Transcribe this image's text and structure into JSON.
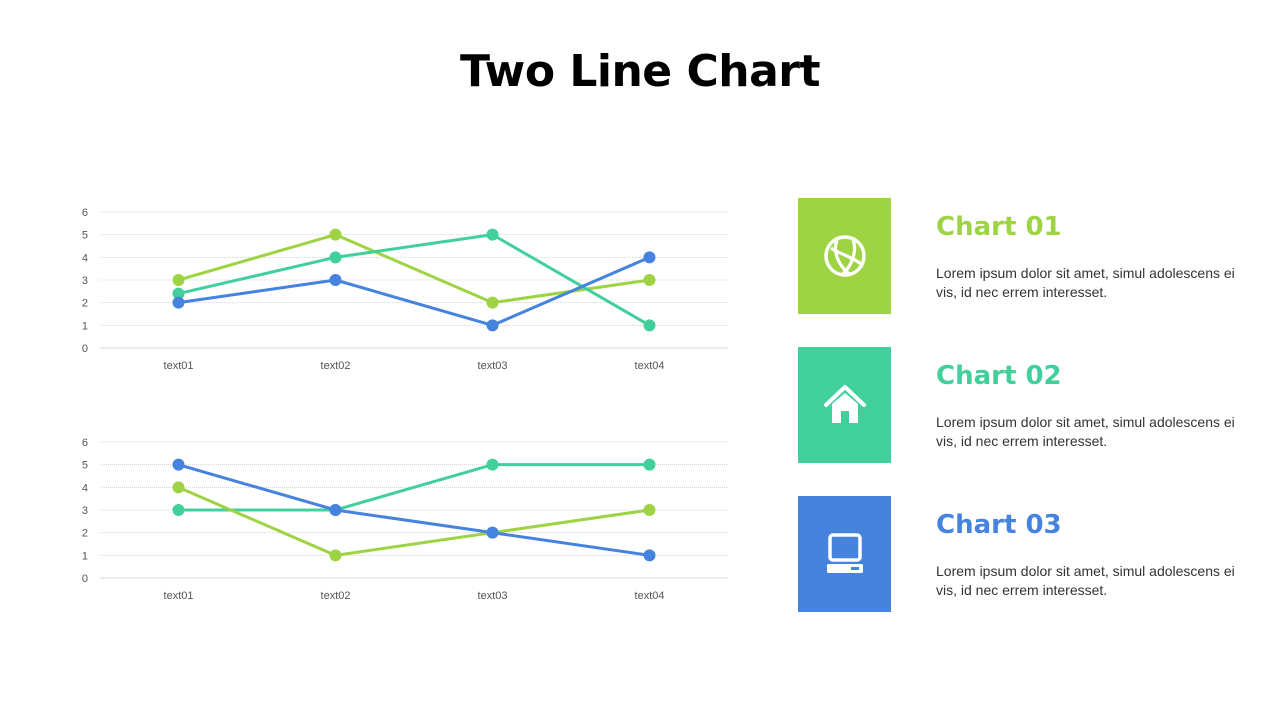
{
  "title": "Two Line Chart",
  "colors": {
    "green": "#9ED443",
    "teal": "#41D09C",
    "blue": "#4583DE"
  },
  "chart_data": [
    {
      "type": "line",
      "categories": [
        "text01",
        "text02",
        "text03",
        "text04"
      ],
      "ylim": [
        0,
        6
      ],
      "yticks": [
        0,
        1,
        2,
        3,
        4,
        5,
        6
      ],
      "grid": true,
      "series": [
        {
          "color": "#9ED443",
          "values": [
            3,
            5,
            2,
            3
          ]
        },
        {
          "color": "#41D09C",
          "values": [
            2.4,
            4,
            5,
            1
          ]
        },
        {
          "color": "#4583DE",
          "values": [
            2,
            3,
            1,
            4
          ]
        }
      ]
    },
    {
      "type": "line",
      "categories": [
        "text01",
        "text02",
        "text03",
        "text04"
      ],
      "ylim": [
        0,
        6
      ],
      "yticks": [
        0,
        1,
        2,
        3,
        4,
        5,
        6
      ],
      "grid": true,
      "series": [
        {
          "color": "#41D09C",
          "values": [
            3,
            3,
            5,
            5
          ]
        },
        {
          "color": "#9ED443",
          "values": [
            4,
            1,
            2,
            3
          ]
        },
        {
          "color": "#4583DE",
          "values": [
            5,
            3,
            2,
            1
          ]
        }
      ]
    }
  ],
  "legend": [
    {
      "heading": "Chart 01",
      "text": "Lorem ipsum dolor sit amet, simul adolescens ei vis, id nec errem  interesset.",
      "color": "#9ED443",
      "icon": "globe-icon"
    },
    {
      "heading": "Chart 02",
      "text": "Lorem ipsum dolor sit amet, simul adolescens ei vis, id nec errem  interesset.",
      "color": "#41D09C",
      "icon": "home-icon"
    },
    {
      "heading": "Chart 03",
      "text": "Lorem ipsum dolor sit amet, simul adolescens ei vis, id nec errem  interesset.",
      "color": "#4583DE",
      "icon": "computer-icon"
    }
  ]
}
